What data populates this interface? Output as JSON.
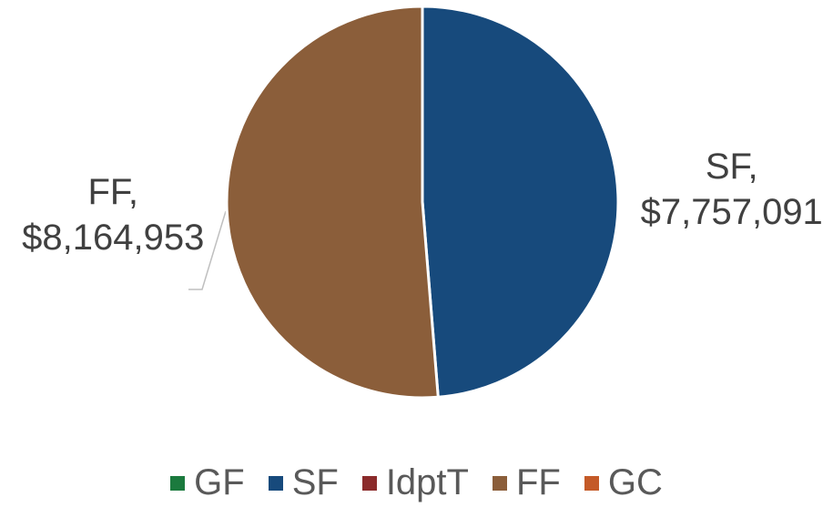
{
  "chart_data": {
    "type": "pie",
    "categories": [
      "GF",
      "SF",
      "IdptT",
      "FF",
      "GC"
    ],
    "values": [
      0,
      7757091,
      0,
      8164953,
      0
    ],
    "value_labels": [
      null,
      "SF, $7,757,091",
      null,
      "FF, $8,164,953",
      null
    ],
    "colors": [
      "#1b7a3e",
      "#174a7c",
      "#8b2b2b",
      "#8b5e3a",
      "#c45a28"
    ],
    "legend": "bottom"
  }
}
